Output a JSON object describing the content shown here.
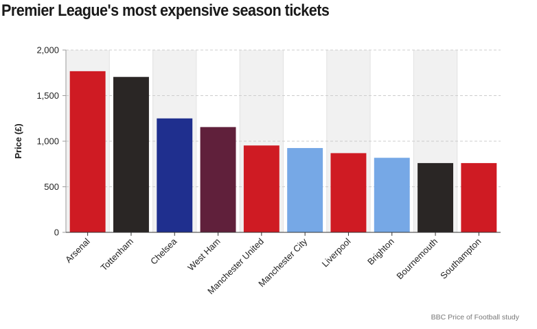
{
  "chart_data": {
    "type": "bar",
    "title": "Premier League's most expensive season tickets",
    "xlabel": "",
    "ylabel": "Price (£)",
    "ylim": [
      0,
      2000
    ],
    "yticks": [
      0,
      500,
      1000,
      1500,
      2000
    ],
    "ytick_labels": [
      "0",
      "500",
      "1,000",
      "1,500",
      "2,000"
    ],
    "categories": [
      "Arsenal",
      "Tottenham",
      "Chelsea",
      "West Ham",
      "Manchester United",
      "Manchester City",
      "Liverpool",
      "Brighton",
      "Bournemouth",
      "Southampton"
    ],
    "values": [
      1768,
      1705,
      1250,
      1155,
      953,
      925,
      869,
      818,
      760,
      760
    ],
    "bar_colors": [
      "#cf1b23",
      "#2a2625",
      "#1f2f8e",
      "#60203b",
      "#cf1b23",
      "#76a8e6",
      "#cf1b23",
      "#76a8e6",
      "#2a2625",
      "#cf1b23"
    ],
    "band_color": "#f1f1f1",
    "grid": true,
    "source": "BBC Price of Football study"
  }
}
